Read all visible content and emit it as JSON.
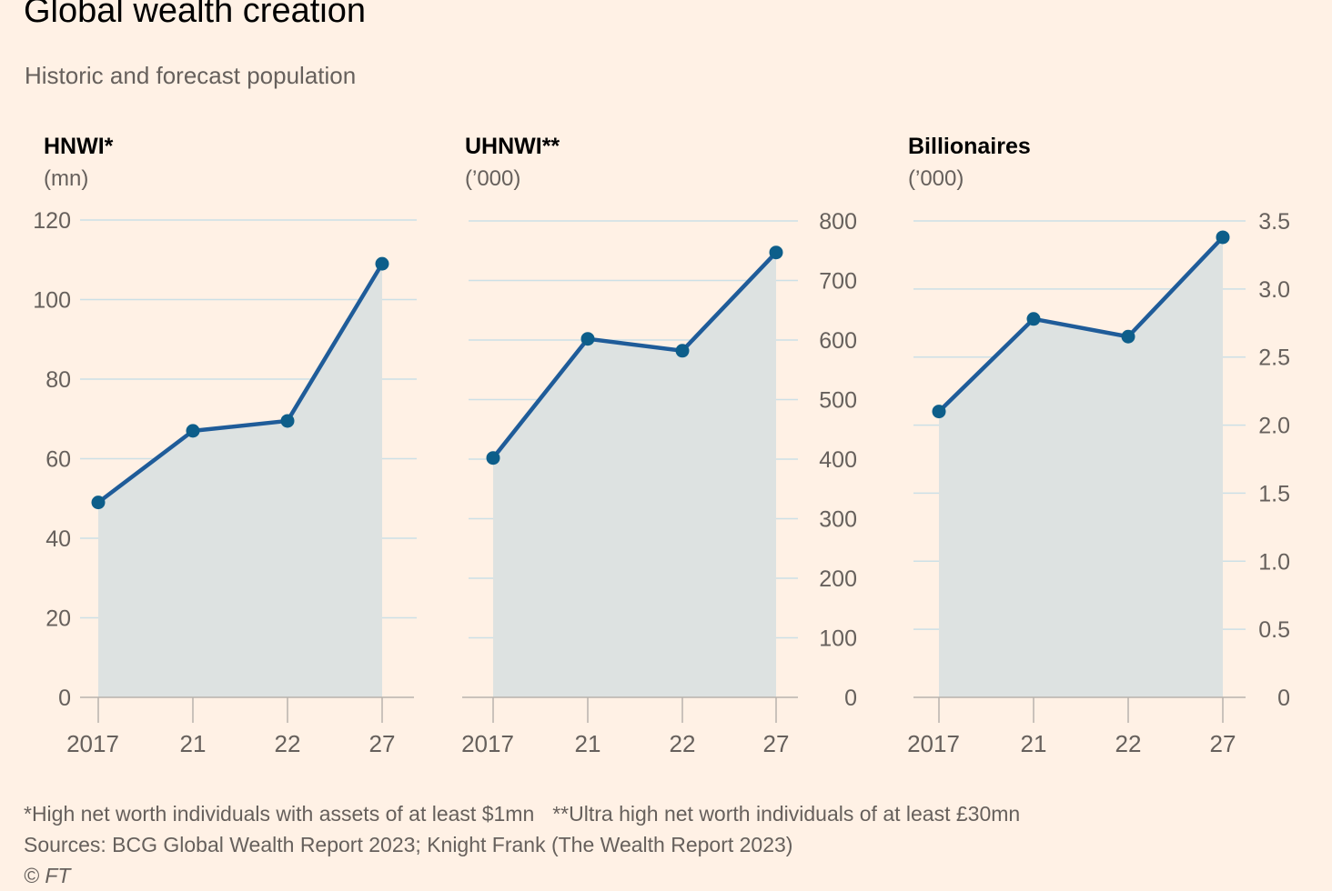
{
  "title": "Global wealth creation",
  "subtitle": "Historic and forecast population",
  "colors": {
    "background": "#fff1e5",
    "line": "#1f5c99",
    "marker": "#0d5e8a",
    "area": "#dde2e1",
    "grid": "#cce0e6",
    "axis": "#b8b2ad",
    "text": "#66605c",
    "heading": "#000000"
  },
  "chart_data": [
    {
      "type": "area",
      "title": "HNWI*",
      "unit": "(mn)",
      "axis_side": "left",
      "categories": [
        "2017",
        "21",
        "22",
        "27"
      ],
      "values": [
        49,
        67,
        69.5,
        109
      ],
      "ylim": [
        0,
        120
      ],
      "yticks": [
        0,
        20,
        40,
        60,
        80,
        100,
        120
      ],
      "grid": true,
      "markers": true
    },
    {
      "type": "area",
      "title": "UHNWI**",
      "unit": "(’000)",
      "axis_side": "right",
      "categories": [
        "2017",
        "21",
        "22",
        "27"
      ],
      "values": [
        402,
        602,
        582,
        747
      ],
      "ylim": [
        0,
        800
      ],
      "yticks": [
        0,
        100,
        200,
        300,
        400,
        500,
        600,
        700,
        800
      ],
      "grid": true,
      "markers": true
    },
    {
      "type": "area",
      "title": "Billionaires",
      "unit": "(’000)",
      "axis_side": "right",
      "categories": [
        "2017",
        "21",
        "22",
        "27"
      ],
      "values": [
        2.1,
        2.78,
        2.65,
        3.38
      ],
      "ylim": [
        0,
        3.5
      ],
      "yticks": [
        "0",
        "0.5",
        "1.0",
        "1.5",
        "2.0",
        "2.5",
        "3.0",
        "3.5"
      ],
      "grid": true,
      "markers": true
    }
  ],
  "footer": {
    "note1": "*High net worth individuals with assets of at least $1mn",
    "note2": "**Ultra high net worth individuals of at least £30mn",
    "sources": "Sources: BCG Global Wealth Report 2023; Knight Frank (The Wealth Report 2023)",
    "copyright": "© FT"
  }
}
